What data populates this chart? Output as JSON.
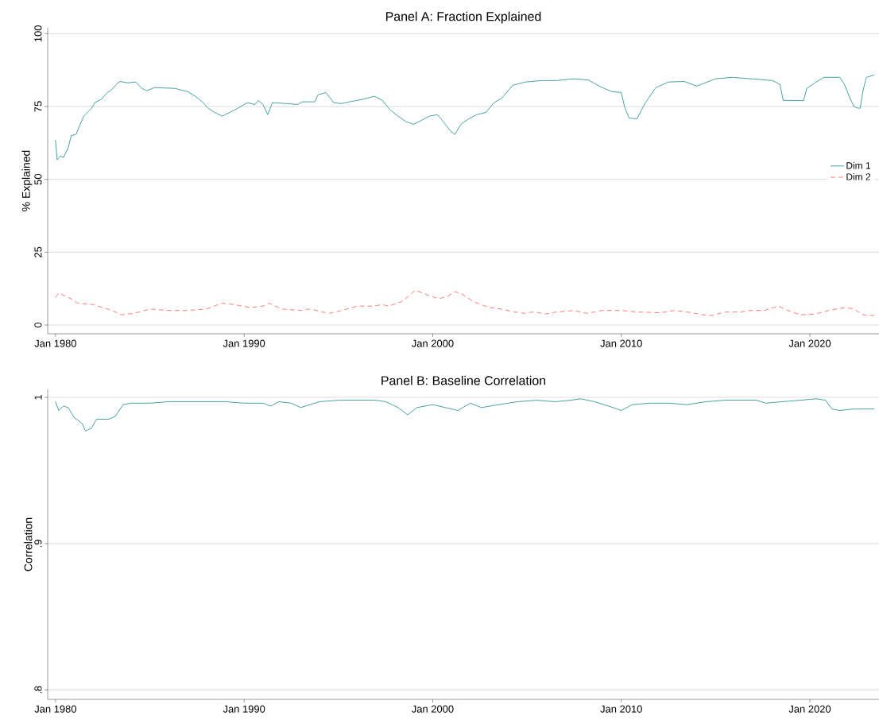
{
  "chart_data": [
    {
      "type": "line",
      "title": "Panel A: Fraction Explained",
      "ylabel": "% Explained",
      "xlim": [
        "1979-08",
        "2023-09"
      ],
      "ylim": [
        -3,
        102
      ],
      "xticks": [
        {
          "value": "1980-01",
          "label": "Jan 1980"
        },
        {
          "value": "1990-01",
          "label": "Jan 1990"
        },
        {
          "value": "2000-01",
          "label": "Jan 2000"
        },
        {
          "value": "2010-01",
          "label": "Jan 2010"
        },
        {
          "value": "2020-01",
          "label": "Jan 2020"
        }
      ],
      "yticks": [
        0,
        25,
        50,
        75,
        100
      ],
      "grid": "y",
      "legend": "right",
      "series": [
        {
          "name": "Dim 1",
          "color": "#1b8a8c",
          "line_style": "solid",
          "x": [
            "1980-01",
            "1980-02",
            "1980-04",
            "1980-06",
            "1980-09",
            "1980-11",
            "1981-02",
            "1981-04",
            "1981-07",
            "1981-12",
            "1982-02",
            "1982-06",
            "1982-10",
            "1982-12",
            "1983-04",
            "1983-06",
            "1983-11",
            "1984-04",
            "1984-08",
            "1984-11",
            "1985-04",
            "1986-05",
            "1987-01",
            "1987-06",
            "1987-11",
            "1988-02",
            "1988-06",
            "1988-11",
            "1989-04",
            "1989-09",
            "1990-03",
            "1990-08",
            "1990-10",
            "1991-01",
            "1991-04",
            "1991-07",
            "1992-04",
            "1992-11",
            "1993-02",
            "1993-10",
            "1993-12",
            "1994-05",
            "1994-10",
            "1995-03",
            "1995-08",
            "1996-04",
            "1996-12",
            "1997-05",
            "1997-10",
            "1998-03",
            "1998-08",
            "1999-01",
            "1999-06",
            "1999-11",
            "2000-04",
            "2000-07",
            "2000-12",
            "2001-03",
            "2001-07",
            "2001-12",
            "2002-05",
            "2002-11",
            "2003-04",
            "2003-09",
            "2004-04",
            "2004-12",
            "2005-10",
            "2006-08",
            "2007-06",
            "2008-04",
            "2008-12",
            "2009-07",
            "2010-01",
            "2010-03",
            "2010-06",
            "2010-11",
            "2011-04",
            "2011-11",
            "2012-07",
            "2013-05",
            "2014-01",
            "2015-01",
            "2015-11",
            "2016-12",
            "2018-01",
            "2018-06",
            "2018-08",
            "2019-09",
            "2019-11",
            "2020-05",
            "2020-10",
            "2021-08",
            "2021-11",
            "2022-02",
            "2022-05",
            "2022-07",
            "2022-09",
            "2022-11",
            "2023-01",
            "2023-06"
          ],
          "values": [
            63.5,
            56.7,
            58,
            57.5,
            60.8,
            65,
            65.4,
            68,
            71.7,
            74.4,
            76.3,
            77.4,
            79.8,
            80.4,
            82.8,
            83.6,
            83.1,
            83.4,
            81.2,
            80.4,
            81.5,
            81.2,
            80.1,
            78.5,
            76.3,
            74.4,
            73,
            71.7,
            73,
            74.4,
            76.3,
            75.7,
            77.1,
            75.7,
            72.2,
            76.3,
            76,
            75.7,
            76.6,
            76.6,
            79,
            79.8,
            76.3,
            76,
            76.6,
            77.4,
            78.5,
            77.1,
            73.8,
            71.7,
            69.8,
            68.9,
            70.3,
            71.7,
            72.2,
            70.3,
            66.8,
            65.4,
            68.9,
            70.8,
            72.2,
            73,
            76.3,
            77.9,
            82.3,
            83.4,
            83.9,
            83.9,
            84.5,
            84.1,
            81.7,
            80.1,
            79.8,
            75,
            71,
            70.8,
            76,
            81.5,
            83.4,
            83.6,
            82,
            84.5,
            85,
            84.5,
            83.9,
            82.6,
            77.1,
            77,
            81.2,
            83.4,
            85,
            85,
            82.6,
            78.5,
            75,
            74.5,
            74.4,
            81,
            85,
            85.8
          ]
        },
        {
          "name": "Dim 2",
          "color": "#ff5a5a",
          "line_style": "dashed",
          "x": [
            "1980-01",
            "1980-03",
            "1980-07",
            "1980-11",
            "1981-03",
            "1982-01",
            "1983-01",
            "1983-07",
            "1984-03",
            "1985-01",
            "1986-01",
            "1987-01",
            "1988-01",
            "1988-11",
            "1989-07",
            "1990-05",
            "1991-01",
            "1991-05",
            "1992-01",
            "1993-01",
            "1993-07",
            "1994-07",
            "1995-03",
            "1996-01",
            "1996-11",
            "1997-05",
            "1997-09",
            "1998-05",
            "1998-11",
            "1999-02",
            "1999-11",
            "2000-05",
            "2000-11",
            "2001-03",
            "2001-08",
            "2002-03",
            "2003-01",
            "2003-08",
            "2004-05",
            "2004-11",
            "2005-05",
            "2006-01",
            "2006-08",
            "2007-07",
            "2008-03",
            "2009-01",
            "2010-01",
            "2010-11",
            "2012-01",
            "2012-11",
            "2013-07",
            "2014-05",
            "2014-11",
            "2015-07",
            "2016-05",
            "2016-11",
            "2017-08",
            "2018-05",
            "2018-11",
            "2019-07",
            "2020-05",
            "2021-01",
            "2021-11",
            "2022-05",
            "2022-11",
            "2023-06"
          ],
          "values": [
            9.5,
            11,
            10,
            9,
            7.5,
            7,
            5,
            3.5,
            4,
            5.5,
            5,
            5,
            5.5,
            7.5,
            7,
            6,
            6.5,
            7.5,
            5.5,
            5,
            5.5,
            4,
            5,
            6.5,
            6.5,
            7,
            6.5,
            8,
            10.5,
            12,
            10,
            9,
            10,
            11.5,
            10.5,
            8,
            6,
            5.5,
            4.5,
            4,
            4.5,
            3.8,
            4.5,
            5,
            4,
            5,
            5,
            4.5,
            4.2,
            5,
            4.5,
            3.5,
            3.3,
            4.5,
            4.5,
            5,
            5,
            6.5,
            5,
            3.5,
            3.8,
            5,
            6,
            5.5,
            3.5,
            3.3
          ]
        }
      ]
    },
    {
      "type": "line",
      "title": "Panel B: Baseline Correlation",
      "ylabel": "Correlation",
      "xlim": [
        "1979-08",
        "2023-09"
      ],
      "ylim": [
        0.7935,
        1.0054
      ],
      "xticks": [
        {
          "value": "1980-01",
          "label": "Jan 1980"
        },
        {
          "value": "1990-01",
          "label": "Jan 1990"
        },
        {
          "value": "2000-01",
          "label": "Jan 2000"
        },
        {
          "value": "2010-01",
          "label": "Jan 2010"
        },
        {
          "value": "2020-01",
          "label": "Jan 2020"
        }
      ],
      "yticks": [
        {
          "value": 0.8,
          "label": ".8"
        },
        {
          "value": 0.9,
          "label": ".9"
        },
        1
      ],
      "grid": "y",
      "series": [
        {
          "color": "#1b8a8c",
          "line_style": "solid",
          "x": [
            "1980-01",
            "1980-03",
            "1980-06",
            "1980-09",
            "1981-01",
            "1981-06",
            "1981-08",
            "1981-12",
            "1982-03",
            "1982-11",
            "1983-03",
            "1983-08",
            "1984-01",
            "1985-01",
            "1986-01",
            "1988-01",
            "1989-01",
            "1990-01",
            "1991-01",
            "1991-06",
            "1991-11",
            "1992-07",
            "1993-01",
            "1994-01",
            "1995-01",
            "1997-01",
            "1997-07",
            "1998-03",
            "1998-09",
            "1999-03",
            "2000-01",
            "2000-09",
            "2001-05",
            "2002-01",
            "2002-08",
            "2003-07",
            "2004-07",
            "2005-07",
            "2006-07",
            "2007-05",
            "2007-11",
            "2008-08",
            "2009-05",
            "2010-01",
            "2010-08",
            "2011-07",
            "2012-07",
            "2013-07",
            "2014-07",
            "2015-07",
            "2016-07",
            "2017-03",
            "2017-09",
            "2018-07",
            "2019-07",
            "2020-05",
            "2020-11",
            "2021-03",
            "2021-08",
            "2022-05",
            "2023-06"
          ],
          "values": [
            0.997,
            0.991,
            0.994,
            0.993,
            0.986,
            0.982,
            0.977,
            0.979,
            0.985,
            0.985,
            0.987,
            0.995,
            0.996,
            0.996,
            0.997,
            0.997,
            0.997,
            0.996,
            0.996,
            0.994,
            0.997,
            0.996,
            0.993,
            0.997,
            0.998,
            0.998,
            0.997,
            0.993,
            0.988,
            0.993,
            0.995,
            0.993,
            0.991,
            0.996,
            0.993,
            0.995,
            0.997,
            0.998,
            0.997,
            0.998,
            0.999,
            0.997,
            0.994,
            0.991,
            0.995,
            0.996,
            0.996,
            0.995,
            0.997,
            0.998,
            0.998,
            0.998,
            0.996,
            0.997,
            0.998,
            0.999,
            0.998,
            0.992,
            0.991,
            0.992,
            0.992
          ]
        }
      ]
    }
  ]
}
